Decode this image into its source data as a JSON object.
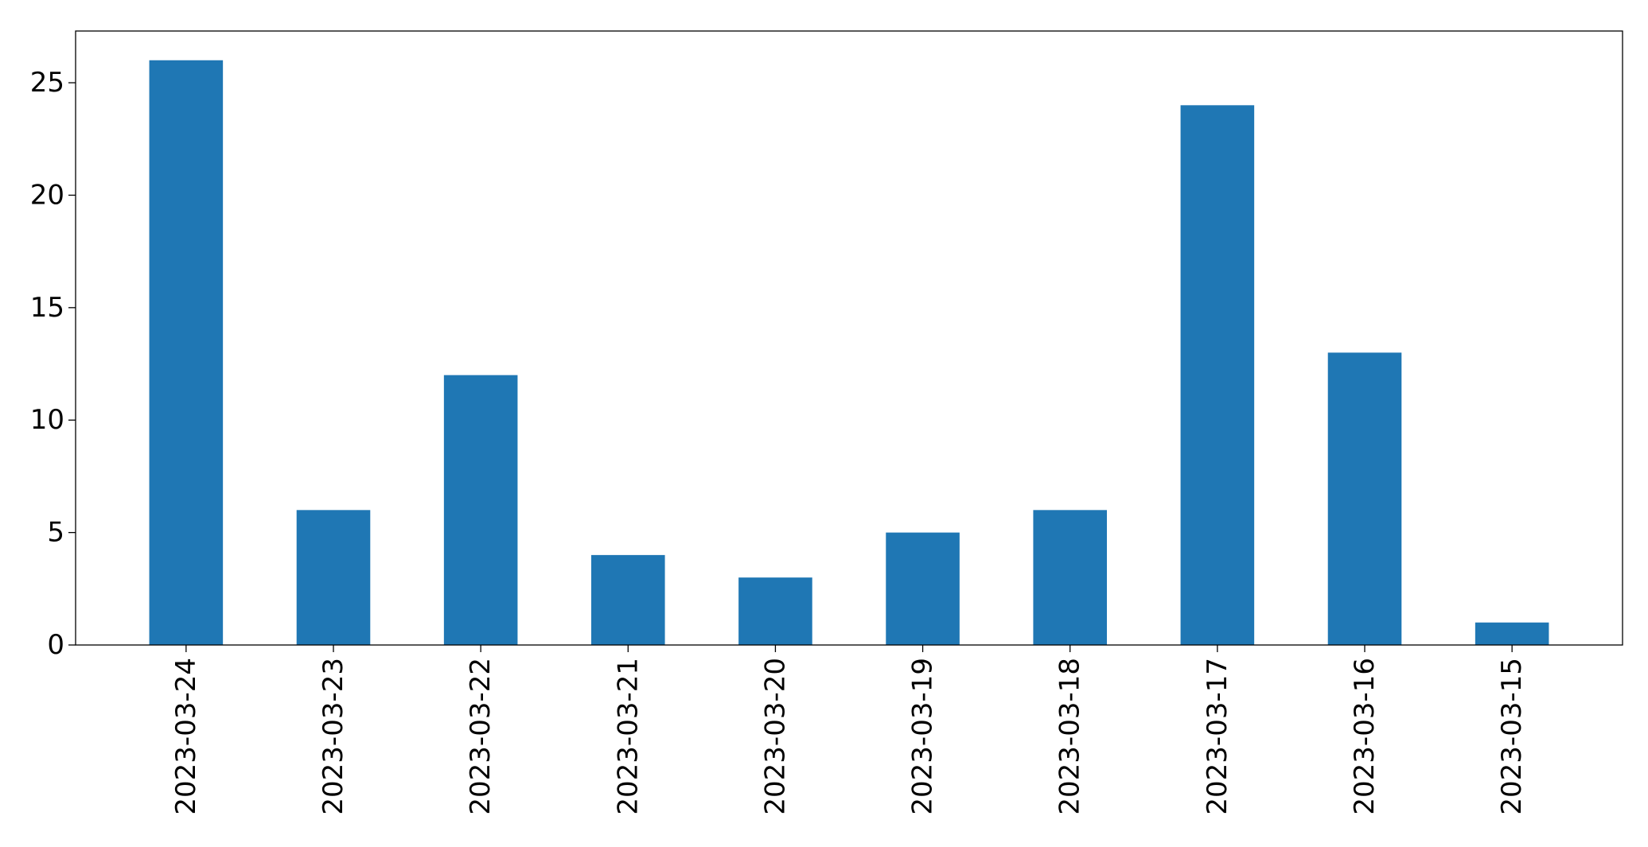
{
  "chart_data": {
    "type": "bar",
    "title": "",
    "xlabel": "",
    "ylabel": "",
    "categories": [
      "2023-03-24",
      "2023-03-23",
      "2023-03-22",
      "2023-03-21",
      "2023-03-20",
      "2023-03-19",
      "2023-03-18",
      "2023-03-17",
      "2023-03-16",
      "2023-03-15"
    ],
    "values": [
      26,
      6,
      12,
      4,
      3,
      5,
      6,
      24,
      13,
      1
    ],
    "ylim": [
      0,
      27.3
    ],
    "yticks": [
      0,
      5,
      10,
      15,
      20,
      25
    ],
    "grid": false,
    "legend": "none",
    "bar_color": "#1f77b4"
  }
}
